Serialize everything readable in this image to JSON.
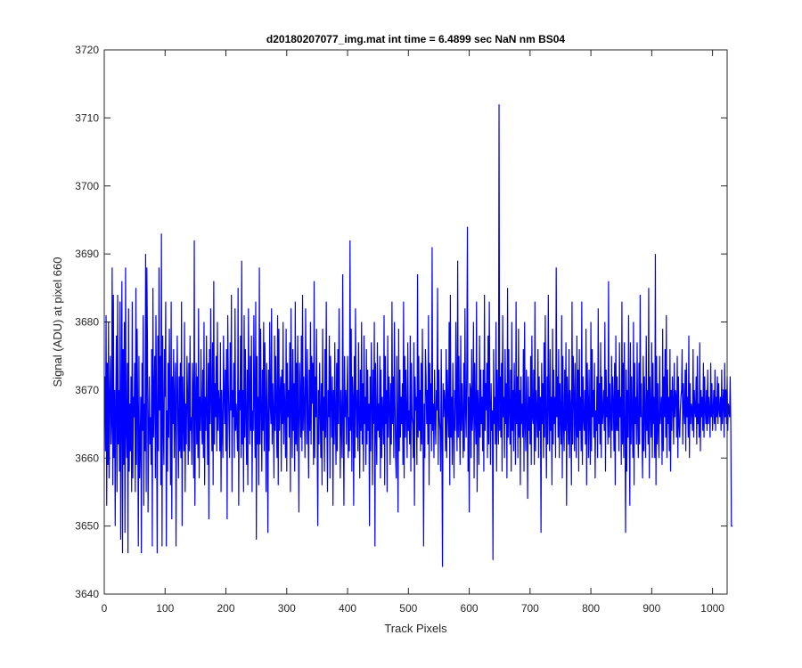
{
  "chart_data": {
    "type": "line",
    "title": "d20180207077_img.mat int time = 6.4899 sec  NaN nm BS04",
    "xlabel": "Track Pixels",
    "ylabel": "Signal (ADU) at pixel 660",
    "xlim": [
      0,
      1024
    ],
    "ylim": [
      3640,
      3720
    ],
    "xticks": [
      0,
      100,
      200,
      300,
      400,
      500,
      600,
      700,
      800,
      900,
      1000
    ],
    "yticks": [
      3640,
      3650,
      3660,
      3670,
      3680,
      3690,
      3700,
      3710,
      3720
    ],
    "grid": false,
    "legend": "none",
    "series": [
      {
        "color": "#0000ff",
        "x_start": 1,
        "x_step": 1,
        "values": [
          3672,
          3661,
          3681,
          3653,
          3674,
          3659,
          3680,
          3657,
          3668,
          3675,
          3662,
          3665,
          3688,
          3656,
          3684,
          3660,
          3670,
          3650,
          3669,
          3678,
          3655,
          3684,
          3662,
          3670,
          3658,
          3683,
          3648,
          3667,
          3686,
          3646,
          3676,
          3659,
          3680,
          3649,
          3688,
          3664,
          3660,
          3674,
          3646,
          3682,
          3658,
          3668,
          3661,
          3672,
          3655,
          3683,
          3657,
          3669,
          3666,
          3674,
          3655,
          3685,
          3659,
          3679,
          3667,
          3647,
          3675,
          3657,
          3662,
          3669,
          3646,
          3674,
          3664,
          3681,
          3653,
          3668,
          3661,
          3690,
          3655,
          3688,
          3677,
          3652,
          3664,
          3672,
          3662,
          3666,
          3659,
          3676,
          3647,
          3685,
          3663,
          3669,
          3675,
          3657,
          3681,
          3666,
          3646,
          3678,
          3661,
          3688,
          3667,
          3675,
          3656,
          3693,
          3647,
          3678,
          3665,
          3659,
          3676,
          3669,
          3683,
          3647,
          3667,
          3658,
          3674,
          3663,
          3679,
          3668,
          3656,
          3683,
          3651,
          3672,
          3665,
          3676,
          3660,
          3669,
          3674,
          3647,
          3668,
          3678,
          3666,
          3657,
          3672,
          3661,
          3674,
          3660,
          3683,
          3650,
          3672,
          3666,
          3661,
          3680,
          3655,
          3668,
          3662,
          3675,
          3669,
          3659,
          3674,
          3661,
          3678,
          3664,
          3666,
          3659,
          3674,
          3669,
          3657,
          3692,
          3653,
          3667,
          3674,
          3662,
          3672,
          3660,
          3682,
          3657,
          3669,
          3664,
          3676,
          3666,
          3662,
          3673,
          3660,
          3680,
          3656,
          3669,
          3664,
          3678,
          3666,
          3659,
          3674,
          3651,
          3676,
          3665,
          3682,
          3668,
          3661,
          3677,
          3656,
          3686,
          3662,
          3671,
          3666,
          3675,
          3661,
          3680,
          3664,
          3670,
          3668,
          3661,
          3677,
          3655,
          3670,
          3664,
          3660,
          3678,
          3669,
          3665,
          3673,
          3661,
          3676,
          3651,
          3681,
          3671,
          3665,
          3660,
          3677,
          3667,
          3684,
          3655,
          3670,
          3666,
          3674,
          3660,
          3682,
          3664,
          3668,
          3665,
          3661,
          3685,
          3653,
          3670,
          3667,
          3678,
          3660,
          3689,
          3662,
          3670,
          3655,
          3681,
          3663,
          3676,
          3666,
          3659,
          3673,
          3656,
          3682,
          3670,
          3662,
          3675,
          3664,
          3678,
          3655,
          3667,
          3664,
          3681,
          3668,
          3660,
          3683,
          3648,
          3675,
          3662,
          3669,
          3656,
          3688,
          3662,
          3679,
          3667,
          3658,
          3673,
          3664,
          3680,
          3661,
          3677,
          3668,
          3655,
          3674,
          3666,
          3649,
          3673,
          3661,
          3680,
          3668,
          3665,
          3682,
          3662,
          3671,
          3666,
          3657,
          3678,
          3664,
          3675,
          3667,
          3660,
          3681,
          3656,
          3679,
          3664,
          3669,
          3672,
          3658,
          3673,
          3665,
          3680,
          3662,
          3671,
          3667,
          3660,
          3679,
          3658,
          3674,
          3666,
          3670,
          3663,
          3677,
          3655,
          3682,
          3668,
          3660,
          3676,
          3664,
          3671,
          3658,
          3683,
          3662,
          3674,
          3661,
          3678,
          3666,
          3652,
          3674,
          3669,
          3663,
          3678,
          3661,
          3684,
          3664,
          3672,
          3667,
          3660,
          3682,
          3670,
          3662,
          3676,
          3665,
          3657,
          3673,
          3664,
          3680,
          3662,
          3675,
          3668,
          3674,
          3659,
          3686,
          3660,
          3672,
          3666,
          3679,
          3663,
          3650,
          3670,
          3662,
          3674,
          3667,
          3660,
          3671,
          3656,
          3679,
          3664,
          3669,
          3658,
          3676,
          3663,
          3683,
          3665,
          3655,
          3670,
          3666,
          3678,
          3657,
          3675,
          3669,
          3663,
          3672,
          3653,
          3670,
          3662,
          3677,
          3666,
          3659,
          3674,
          3661,
          3676,
          3665,
          3682,
          3668,
          3657,
          3670,
          3665,
          3660,
          3687,
          3665,
          3653,
          3675,
          3666,
          3670,
          3662,
          3669,
          3675,
          3660,
          3666,
          3661,
          3692,
          3664,
          3679,
          3658,
          3672,
          3669,
          3653,
          3675,
          3660,
          3682,
          3668,
          3663,
          3670,
          3661,
          3677,
          3666,
          3657,
          3673,
          3664,
          3680,
          3662,
          3671,
          3658,
          3678,
          3665,
          3669,
          3659,
          3676,
          3662,
          3673,
          3664,
          3668,
          3650,
          3672,
          3661,
          3677,
          3669,
          3656,
          3673,
          3665,
          3680,
          3647,
          3674,
          3665,
          3659,
          3677,
          3664,
          3668,
          3663,
          3675,
          3657,
          3673,
          3660,
          3669,
          3666,
          3662,
          3681,
          3656,
          3675,
          3665,
          3670,
          3655,
          3678,
          3663,
          3672,
          3668,
          3659,
          3671,
          3662,
          3683,
          3665,
          3672,
          3660,
          3680,
          3668,
          3660,
          3657,
          3675,
          3665,
          3652,
          3679,
          3661,
          3673,
          3663,
          3669,
          3665,
          3671,
          3659,
          3683,
          3657,
          3675,
          3663,
          3673,
          3666,
          3660,
          3677,
          3664,
          3667,
          3662,
          3678,
          3658,
          3674,
          3666,
          3665,
          3660,
          3677,
          3653,
          3672,
          3667,
          3669,
          3659,
          3687,
          3663,
          3675,
          3664,
          3670,
          3661,
          3674,
          3662,
          3679,
          3665,
          3647,
          3668,
          3660,
          3676,
          3672,
          3665,
          3670,
          3662,
          3681,
          3656,
          3674,
          3665,
          3671,
          3661,
          3691,
          3664,
          3668,
          3660,
          3673,
          3666,
          3662,
          3670,
          3667,
          3685,
          3659,
          3673,
          3666,
          3664,
          3658,
          3676,
          3664,
          3644,
          3671,
          3666,
          3670,
          3668,
          3661,
          3676,
          3660,
          3673,
          3667,
          3663,
          3680,
          3656,
          3684,
          3663,
          3669,
          3659,
          3674,
          3665,
          3657,
          3670,
          3664,
          3680,
          3668,
          3661,
          3689,
          3663,
          3675,
          3665,
          3659,
          3678,
          3664,
          3671,
          3666,
          3660,
          3674,
          3661,
          3682,
          3667,
          3663,
          3674,
          3694,
          3658,
          3669,
          3652,
          3671,
          3670,
          3660,
          3676,
          3664,
          3667,
          3680,
          3657,
          3674,
          3666,
          3662,
          3683,
          3655,
          3670,
          3667,
          3659,
          3678,
          3663,
          3673,
          3665,
          3669,
          3661,
          3673,
          3658,
          3684,
          3664,
          3671,
          3667,
          3674,
          3660,
          3678,
          3662,
          3683,
          3668,
          3659,
          3671,
          3664,
          3667,
          3645,
          3676,
          3665,
          3669,
          3662,
          3680,
          3658,
          3673,
          3666,
          3662,
          3712,
          3664,
          3672,
          3663,
          3674,
          3658,
          3681,
          3666,
          3669,
          3660,
          3676,
          3665,
          3671,
          3657,
          3685,
          3663,
          3676,
          3667,
          3662,
          3673,
          3658,
          3680,
          3664,
          3670,
          3661,
          3674,
          3667,
          3659,
          3683,
          3665,
          3672,
          3660,
          3679,
          3663,
          3670,
          3656,
          3672,
          3665,
          3668,
          3663,
          3676,
          3658,
          3680,
          3665,
          3661,
          3673,
          3667,
          3654,
          3672,
          3664,
          3669,
          3662,
          3675,
          3659,
          3678,
          3666,
          3665,
          3673,
          3659,
          3683,
          3661,
          3670,
          3667,
          3663,
          3676,
          3660,
          3672,
          3664,
          3669,
          3649,
          3674,
          3665,
          3671,
          3660,
          3677,
          3663,
          3681,
          3666,
          3657,
          3672,
          3662,
          3684,
          3667,
          3661,
          3676,
          3664,
          3669,
          3656,
          3679,
          3662,
          3673,
          3665,
          3669,
          3660,
          3688,
          3666,
          3672,
          3663,
          3676,
          3660,
          3671,
          3666,
          3662,
          3681,
          3657,
          3675,
          3665,
          3661,
          3673,
          3664,
          3677,
          3653,
          3672,
          3668,
          3662,
          3676,
          3660,
          3670,
          3667,
          3656,
          3683,
          3662,
          3675,
          3669,
          3661,
          3674,
          3665,
          3660,
          3678,
          3663,
          3673,
          3658,
          3676,
          3664,
          3669,
          3661,
          3683,
          3659,
          3672,
          3666,
          3664,
          3670,
          3662,
          3679,
          3656,
          3674,
          3668,
          3660,
          3673,
          3665,
          3659,
          3680,
          3661,
          3676,
          3666,
          3670,
          3663,
          3674,
          3657,
          3667,
          3664,
          3672,
          3660,
          3682,
          3665,
          3671,
          3662,
          3677,
          3660,
          3672,
          3665,
          3667,
          3670,
          3664,
          3680,
          3658,
          3673,
          3666,
          3669,
          3662,
          3686,
          3663,
          3671,
          3667,
          3660,
          3675,
          3664,
          3672,
          3668,
          3661,
          3674,
          3656,
          3678,
          3664,
          3672,
          3664,
          3670,
          3661,
          3677,
          3666,
          3669,
          3659,
          3683,
          3662,
          3674,
          3660,
          3677,
          3665,
          3649,
          3673,
          3658,
          3670,
          3663,
          3681,
          3666,
          3653,
          3677,
          3662,
          3672,
          3666,
          3660,
          3680,
          3656,
          3674,
          3665,
          3669,
          3662,
          3677,
          3665,
          3660,
          3674,
          3662,
          3684,
          3666,
          3671,
          3663,
          3657,
          3675,
          3661,
          3672,
          3666,
          3660,
          3678,
          3664,
          3670,
          3662,
          3685,
          3657,
          3672,
          3667,
          3663,
          3677,
          3660,
          3674,
          3665,
          3669,
          3660,
          3690,
          3656,
          3675,
          3662,
          3671,
          3664,
          3660,
          3675,
          3665,
          3667,
          3669,
          3659,
          3679,
          3661,
          3672,
          3666,
          3676,
          3663,
          3681,
          3660,
          3673,
          3665,
          3669,
          3661,
          3676,
          3658,
          3670,
          3664,
          3672,
          3668,
          3662,
          3674,
          3666,
          3670,
          3669,
          3663,
          3675,
          3660,
          3672,
          3665,
          3663,
          3667,
          3669,
          3670,
          3676,
          3662,
          3671,
          3667,
          3665,
          3673,
          3661,
          3674,
          3666,
          3669,
          3663,
          3678,
          3660,
          3671,
          3665,
          3668,
          3667,
          3664,
          3676,
          3663,
          3670,
          3667,
          3666,
          3672,
          3662,
          3675,
          3665,
          3668,
          3663,
          3677,
          3661,
          3670,
          3666,
          3669,
          3664,
          3674,
          3663,
          3672,
          3667,
          3665,
          3670,
          3664,
          3673,
          3665,
          3669,
          3667,
          3663,
          3674,
          3666,
          3671,
          3664,
          3667,
          3670,
          3665,
          3673,
          3664,
          3669,
          3666,
          3672,
          3665,
          3671,
          3667,
          3666,
          3669,
          3664,
          3673,
          3665,
          3668,
          3670,
          3663,
          3674,
          3666,
          3670,
          3665,
          3672,
          3664,
          3668,
          3667,
          3666,
          3672,
          3665,
          3650,
          3650,
          3650
        ]
      }
    ]
  }
}
